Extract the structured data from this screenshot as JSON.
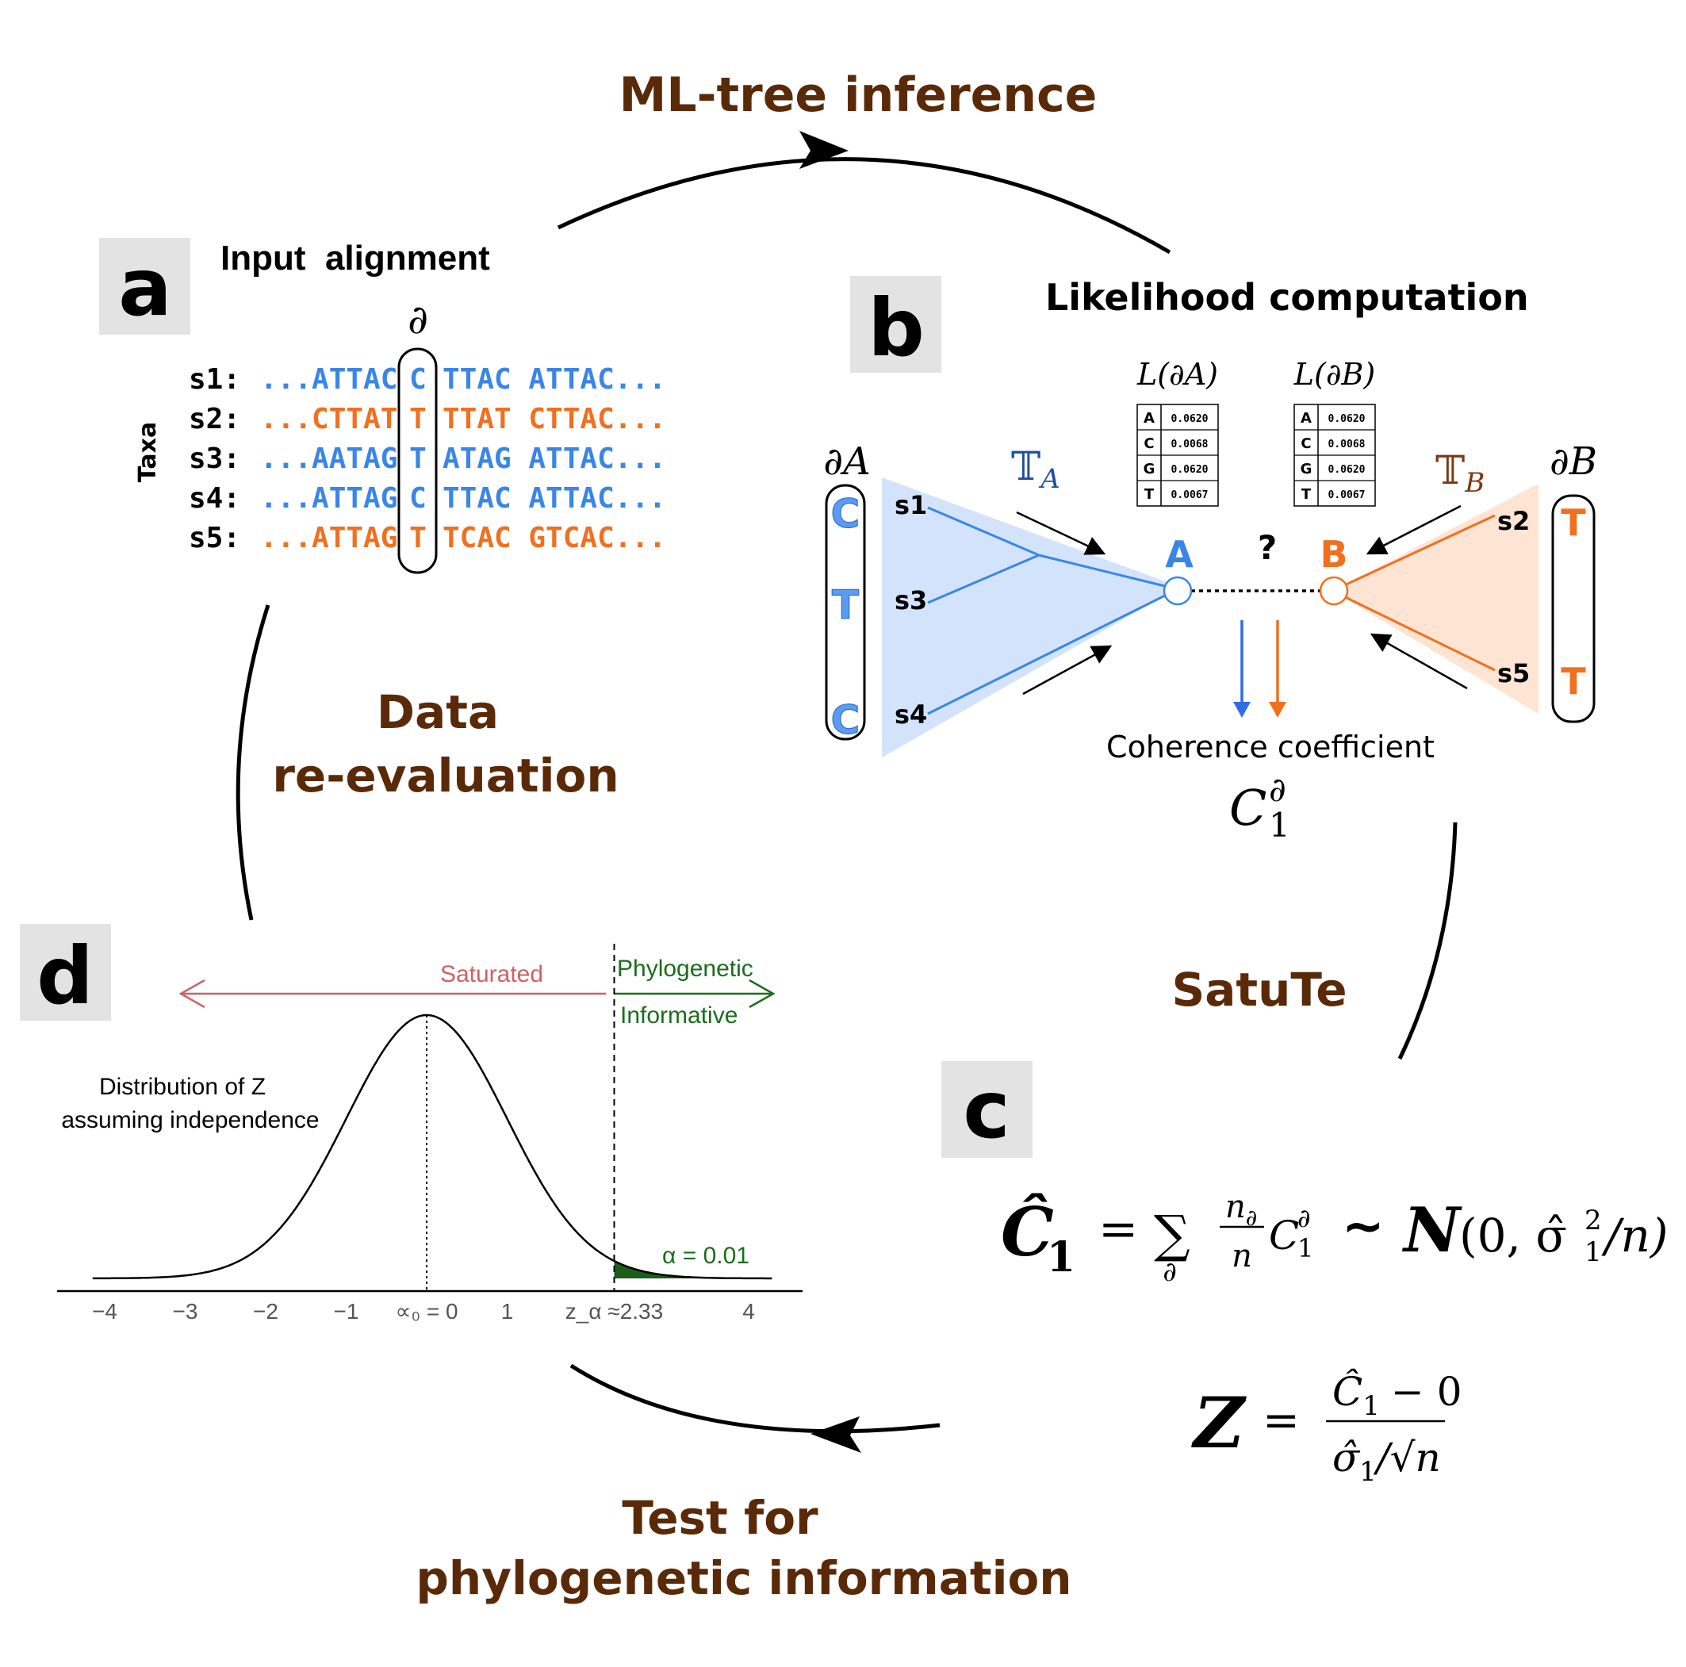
{
  "labels": {
    "ml_tree": "ML-tree inference",
    "data_reeval_1": "Data",
    "data_reeval_2": "re-evaluation",
    "satute": "SatuTe",
    "test_1": "Test for",
    "test_2": "phylogenetic information"
  },
  "panel_a": {
    "letter": "a",
    "title": "Input  alignment",
    "column_symbol": "∂",
    "taxa_label": "Taxa",
    "rows": [
      {
        "name": "s1:",
        "left": "...ATTAC",
        "site": "C",
        "right": "TTAC ATTAC...",
        "color": "#3a86e8"
      },
      {
        "name": "s2:",
        "left": "...CTTAT",
        "site": "T",
        "right": "TTAT CTTAC...",
        "color": "#f07020"
      },
      {
        "name": "s3:",
        "left": "...AATAG",
        "site": "T",
        "right": "ATAG ATTAC...",
        "color": "#3a86e8"
      },
      {
        "name": "s4:",
        "left": "...ATTAG",
        "site": "C",
        "right": "TTAC ATTAC...",
        "color": "#3a86e8"
      },
      {
        "name": "s5:",
        "left": "...ATTAG",
        "site": "T",
        "right": "TCAC GTCAC...",
        "color": "#f07020"
      }
    ]
  },
  "panel_b": {
    "letter": "b",
    "title": "Likelihood computation",
    "partial_A": "∂A",
    "partial_B": "∂B",
    "tree_A_symbol": "𝕋",
    "tree_A_sub": "A",
    "tree_B_symbol": "𝕋",
    "tree_B_sub": "B",
    "node_A": "A",
    "node_B": "B",
    "question": "?",
    "left_column": [
      "C",
      "T",
      "C"
    ],
    "right_column": [
      "T",
      "T"
    ],
    "left_leaves": [
      "s1",
      "s3",
      "s4"
    ],
    "right_leaves": [
      "s2",
      "s5"
    ],
    "lik_A_title": "L(∂A)",
    "lik_B_title": "L(∂B)",
    "lik_table": [
      {
        "base": "A",
        "value": "0.0620"
      },
      {
        "base": "C",
        "value": "0.0068"
      },
      {
        "base": "G",
        "value": "0.0620"
      },
      {
        "base": "T",
        "value": "0.0067"
      }
    ],
    "coherence_label": "Coherence coefficient",
    "coherence_symbol": "C",
    "coherence_sub": "1",
    "coherence_sup": "∂"
  },
  "panel_c": {
    "letter": "c",
    "formula1": {
      "lhs": "Ĉ",
      "lhs_sub": "1",
      "eq": "=",
      "sum": "∑",
      "sum_sub": "∂",
      "frac_num": "n",
      "frac_num_sub": "∂",
      "frac_den": "n",
      "term": "C",
      "term_sub": "1",
      "term_sup": "∂",
      "tilde": "~",
      "dist": "N",
      "args": "(0, σ̂",
      "args_sup": "2",
      "args_sub": "1",
      "args_end": "/n)"
    },
    "formula2": {
      "lhs": "Z",
      "eq": "=",
      "num": "Ĉ",
      "num_sub": "1",
      "num_rest": "− 0",
      "den": "σ̂",
      "den_sub": "1",
      "den_rest": "/√n"
    }
  },
  "panel_d": {
    "letter": "d",
    "saturated": "Saturated",
    "phylo_1": "Phylogenetic",
    "phylo_2": "Informative",
    "dist_1": "Distribution of Z",
    "dist_2": "assuming independence",
    "alpha_label": "α = 0.01",
    "ticks": [
      "−4",
      "−3",
      "−2",
      "−1",
      "∝₀ = 0",
      "1",
      "z_α ≈2.33",
      "4"
    ],
    "tick_values": [
      -4,
      -3,
      -2,
      -1,
      0,
      1,
      2.33,
      4
    ],
    "critical_value": 2.33
  },
  "colors": {
    "brown": "#5a2a08",
    "blue": "#3a86e8",
    "orange": "#f07020",
    "blue_fill": "#d2e3fb",
    "orange_fill": "#fde4d3",
    "saturated": "#c96464",
    "phylo": "#1a6e1a",
    "letter_bg": "#e3e3e3"
  }
}
